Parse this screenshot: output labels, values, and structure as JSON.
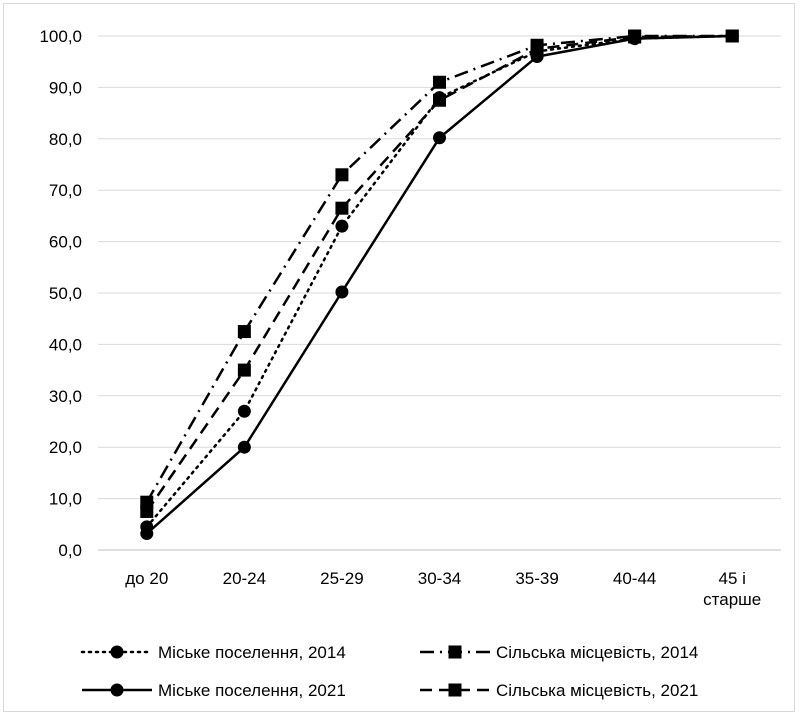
{
  "chart_data": {
    "type": "line",
    "categories": [
      "до 20",
      "20-24",
      "25-29",
      "30-34",
      "35-39",
      "40-44",
      "45 і старше"
    ],
    "category_lines": [
      [
        "до 20"
      ],
      [
        "20-24"
      ],
      [
        "25-29"
      ],
      [
        "30-34"
      ],
      [
        "35-39"
      ],
      [
        "40-44"
      ],
      [
        "45 і",
        "старше"
      ]
    ],
    "ylim": [
      0,
      100
    ],
    "yticks": [
      0,
      10,
      20,
      30,
      40,
      50,
      60,
      70,
      80,
      90,
      100
    ],
    "ytick_labels": [
      "0,0",
      "10,0",
      "20,0",
      "30,0",
      "40,0",
      "50,0",
      "60,0",
      "70,0",
      "80,0",
      "90,0",
      "100,0"
    ],
    "grid": "horizontal",
    "legend_position": "bottom",
    "series": [
      {
        "name": "Міське поселення, 2014",
        "values": [
          4.5,
          27.0,
          63.0,
          88.0,
          97.0,
          99.5,
          100.0
        ],
        "line": "dotted",
        "marker": "circle",
        "color": "#000000"
      },
      {
        "name": "Сільська місцевість, 2014",
        "values": [
          9.3,
          42.5,
          73.0,
          91.0,
          98.2,
          100.0,
          100.0
        ],
        "line": "dash-dot",
        "marker": "square",
        "color": "#000000"
      },
      {
        "name": "Міське поселення, 2021",
        "values": [
          3.2,
          20.0,
          50.2,
          80.2,
          96.0,
          99.5,
          100.0
        ],
        "line": "solid",
        "marker": "circle",
        "color": "#000000"
      },
      {
        "name": "Сільська місцевість, 2021",
        "values": [
          7.5,
          35.0,
          66.5,
          87.5,
          97.5,
          99.8,
          100.0
        ],
        "line": "dashed",
        "marker": "square",
        "color": "#000000"
      }
    ]
  }
}
